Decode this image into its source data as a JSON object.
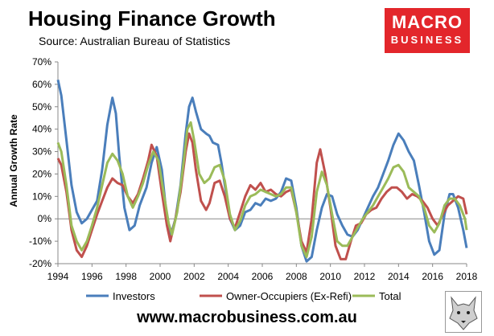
{
  "header": {
    "title": "Housing Finance Growth",
    "subtitle": "Source: Australian Bureau of Statistics"
  },
  "logo": {
    "line1": "MACRO",
    "line2": "BUSINESS",
    "color": "#e3262b"
  },
  "footer": {
    "url": "www.macrobusiness.com.au"
  },
  "chart_data": {
    "type": "line",
    "title": "Housing Finance Growth",
    "xlabel": "",
    "ylabel": "Annual Growth Rate",
    "xlim": [
      1994,
      2018
    ],
    "ylim": [
      -20,
      70
    ],
    "yticks": [
      -20,
      -10,
      0,
      10,
      20,
      30,
      40,
      50,
      60,
      70
    ],
    "ytick_labels": [
      "-20%",
      "-10%",
      "0%",
      "10%",
      "20%",
      "30%",
      "40%",
      "50%",
      "60%",
      "70%"
    ],
    "xticks": [
      1994,
      1996,
      1998,
      2000,
      2002,
      2004,
      2006,
      2008,
      2010,
      2012,
      2014,
      2016,
      2018
    ],
    "xtick_labels": [
      "1994",
      "1996",
      "1998",
      "2000",
      "2002",
      "2004",
      "2006",
      "2008",
      "2010",
      "2012",
      "2014",
      "2016",
      "2018"
    ],
    "grid": false,
    "legend_position": "bottom",
    "series": [
      {
        "name": "Investors",
        "color": "#4a7ebb",
        "points": [
          [
            1994,
            62
          ],
          [
            1994.2,
            55
          ],
          [
            1994.5,
            35
          ],
          [
            1994.8,
            15
          ],
          [
            1995.1,
            3
          ],
          [
            1995.4,
            -2
          ],
          [
            1995.7,
            0
          ],
          [
            1996,
            4
          ],
          [
            1996.3,
            8
          ],
          [
            1996.6,
            22
          ],
          [
            1996.9,
            42
          ],
          [
            1997.2,
            54
          ],
          [
            1997.4,
            47
          ],
          [
            1997.6,
            28
          ],
          [
            1997.9,
            5
          ],
          [
            1998.2,
            -5
          ],
          [
            1998.5,
            -3
          ],
          [
            1998.8,
            6
          ],
          [
            1999.2,
            14
          ],
          [
            1999.5,
            25
          ],
          [
            1999.8,
            32
          ],
          [
            2000.1,
            22
          ],
          [
            2000.4,
            0
          ],
          [
            2000.6,
            -8
          ],
          [
            2000.9,
            0
          ],
          [
            2001.2,
            15
          ],
          [
            2001.5,
            38
          ],
          [
            2001.7,
            50
          ],
          [
            2001.9,
            54
          ],
          [
            2002.1,
            48
          ],
          [
            2002.4,
            40
          ],
          [
            2002.7,
            38
          ],
          [
            2002.9,
            37
          ],
          [
            2003.1,
            34
          ],
          [
            2003.4,
            33
          ],
          [
            2003.6,
            25
          ],
          [
            2003.9,
            10
          ],
          [
            2004.1,
            0
          ],
          [
            2004.4,
            -5
          ],
          [
            2004.7,
            -3
          ],
          [
            2005,
            3
          ],
          [
            2005.3,
            4
          ],
          [
            2005.6,
            7
          ],
          [
            2005.9,
            6
          ],
          [
            2006.2,
            9
          ],
          [
            2006.5,
            8
          ],
          [
            2006.8,
            9
          ],
          [
            2007.1,
            12
          ],
          [
            2007.4,
            18
          ],
          [
            2007.7,
            17
          ],
          [
            2008,
            5
          ],
          [
            2008.3,
            -12
          ],
          [
            2008.6,
            -19
          ],
          [
            2008.9,
            -17
          ],
          [
            2009.2,
            -5
          ],
          [
            2009.5,
            5
          ],
          [
            2009.8,
            11
          ],
          [
            2010.1,
            10
          ],
          [
            2010.4,
            2
          ],
          [
            2010.7,
            -3
          ],
          [
            2011,
            -7
          ],
          [
            2011.3,
            -8
          ],
          [
            2011.6,
            -5
          ],
          [
            2011.9,
            0
          ],
          [
            2012.2,
            5
          ],
          [
            2012.5,
            10
          ],
          [
            2012.8,
            14
          ],
          [
            2013.1,
            20
          ],
          [
            2013.4,
            26
          ],
          [
            2013.7,
            33
          ],
          [
            2014,
            38
          ],
          [
            2014.3,
            35
          ],
          [
            2014.6,
            30
          ],
          [
            2014.9,
            26
          ],
          [
            2015.2,
            15
          ],
          [
            2015.5,
            3
          ],
          [
            2015.8,
            -10
          ],
          [
            2016.1,
            -16
          ],
          [
            2016.4,
            -14
          ],
          [
            2016.7,
            2
          ],
          [
            2017,
            11
          ],
          [
            2017.2,
            11
          ],
          [
            2017.5,
            5
          ],
          [
            2017.8,
            -5
          ],
          [
            2018,
            -13
          ]
        ]
      },
      {
        "name": "Owner-Occupiers (Ex-Refi)",
        "color": "#c0504d",
        "points": [
          [
            1994,
            27
          ],
          [
            1994.2,
            24
          ],
          [
            1994.5,
            12
          ],
          [
            1994.8,
            -5
          ],
          [
            1995.1,
            -14
          ],
          [
            1995.4,
            -17
          ],
          [
            1995.7,
            -12
          ],
          [
            1996,
            -5
          ],
          [
            1996.3,
            2
          ],
          [
            1996.6,
            8
          ],
          [
            1996.9,
            14
          ],
          [
            1997.2,
            18
          ],
          [
            1997.5,
            16
          ],
          [
            1997.8,
            15
          ],
          [
            1998.1,
            10
          ],
          [
            1998.4,
            7
          ],
          [
            1998.7,
            11
          ],
          [
            1999,
            18
          ],
          [
            1999.3,
            26
          ],
          [
            1999.5,
            33
          ],
          [
            1999.8,
            28
          ],
          [
            2000.1,
            12
          ],
          [
            2000.4,
            -3
          ],
          [
            2000.6,
            -10
          ],
          [
            2000.9,
            0
          ],
          [
            2001.2,
            12
          ],
          [
            2001.5,
            30
          ],
          [
            2001.7,
            38
          ],
          [
            2001.9,
            34
          ],
          [
            2002.1,
            22
          ],
          [
            2002.4,
            8
          ],
          [
            2002.7,
            4
          ],
          [
            2002.9,
            7
          ],
          [
            2003.2,
            16
          ],
          [
            2003.5,
            17
          ],
          [
            2003.8,
            10
          ],
          [
            2004.1,
            0
          ],
          [
            2004.4,
            -4
          ],
          [
            2004.7,
            3
          ],
          [
            2005,
            10
          ],
          [
            2005.3,
            15
          ],
          [
            2005.6,
            13
          ],
          [
            2005.9,
            16
          ],
          [
            2006.2,
            12
          ],
          [
            2006.5,
            13
          ],
          [
            2006.8,
            11
          ],
          [
            2007.1,
            10
          ],
          [
            2007.4,
            12
          ],
          [
            2007.7,
            13
          ],
          [
            2008,
            3
          ],
          [
            2008.3,
            -10
          ],
          [
            2008.6,
            -15
          ],
          [
            2008.9,
            0
          ],
          [
            2009.2,
            25
          ],
          [
            2009.4,
            31
          ],
          [
            2009.7,
            20
          ],
          [
            2010,
            5
          ],
          [
            2010.3,
            -12
          ],
          [
            2010.6,
            -18
          ],
          [
            2010.9,
            -18
          ],
          [
            2011.2,
            -10
          ],
          [
            2011.5,
            -3
          ],
          [
            2011.8,
            -2
          ],
          [
            2012.1,
            2
          ],
          [
            2012.4,
            4
          ],
          [
            2012.7,
            5
          ],
          [
            2013,
            9
          ],
          [
            2013.3,
            12
          ],
          [
            2013.6,
            14
          ],
          [
            2013.9,
            14
          ],
          [
            2014.2,
            12
          ],
          [
            2014.5,
            9
          ],
          [
            2014.8,
            11
          ],
          [
            2015.1,
            10
          ],
          [
            2015.4,
            8
          ],
          [
            2015.7,
            5
          ],
          [
            2016,
            0
          ],
          [
            2016.3,
            -3
          ],
          [
            2016.6,
            2
          ],
          [
            2016.9,
            6
          ],
          [
            2017.2,
            8
          ],
          [
            2017.5,
            10
          ],
          [
            2017.8,
            9
          ],
          [
            2018,
            2
          ]
        ]
      },
      {
        "name": "Total",
        "color": "#9bbb59",
        "points": [
          [
            1994,
            34
          ],
          [
            1994.2,
            30
          ],
          [
            1994.5,
            15
          ],
          [
            1994.8,
            -3
          ],
          [
            1995.1,
            -10
          ],
          [
            1995.4,
            -14
          ],
          [
            1995.7,
            -10
          ],
          [
            1996,
            -3
          ],
          [
            1996.3,
            5
          ],
          [
            1996.6,
            15
          ],
          [
            1996.9,
            25
          ],
          [
            1997.2,
            29
          ],
          [
            1997.5,
            26
          ],
          [
            1997.8,
            20
          ],
          [
            1998.1,
            10
          ],
          [
            1998.4,
            5
          ],
          [
            1998.7,
            10
          ],
          [
            1999,
            16
          ],
          [
            1999.3,
            24
          ],
          [
            1999.6,
            30
          ],
          [
            1999.9,
            26
          ],
          [
            2000.2,
            12
          ],
          [
            2000.5,
            -2
          ],
          [
            2000.7,
            -7
          ],
          [
            2001,
            3
          ],
          [
            2001.3,
            20
          ],
          [
            2001.6,
            40
          ],
          [
            2001.8,
            43
          ],
          [
            2002,
            35
          ],
          [
            2002.3,
            20
          ],
          [
            2002.6,
            16
          ],
          [
            2002.9,
            18
          ],
          [
            2003.2,
            23
          ],
          [
            2003.5,
            24
          ],
          [
            2003.8,
            17
          ],
          [
            2004.1,
            2
          ],
          [
            2004.4,
            -5
          ],
          [
            2004.7,
            -1
          ],
          [
            2005,
            6
          ],
          [
            2005.3,
            10
          ],
          [
            2005.6,
            11
          ],
          [
            2005.9,
            13
          ],
          [
            2006.2,
            12
          ],
          [
            2006.5,
            11
          ],
          [
            2006.8,
            10
          ],
          [
            2007.1,
            11
          ],
          [
            2007.4,
            14
          ],
          [
            2007.7,
            14
          ],
          [
            2008,
            3
          ],
          [
            2008.3,
            -12
          ],
          [
            2008.6,
            -17
          ],
          [
            2008.9,
            -8
          ],
          [
            2009.2,
            12
          ],
          [
            2009.5,
            21
          ],
          [
            2009.8,
            15
          ],
          [
            2010.1,
            2
          ],
          [
            2010.4,
            -10
          ],
          [
            2010.7,
            -12
          ],
          [
            2011,
            -12
          ],
          [
            2011.3,
            -8
          ],
          [
            2011.6,
            -4
          ],
          [
            2011.9,
            0
          ],
          [
            2012.2,
            3
          ],
          [
            2012.5,
            6
          ],
          [
            2012.8,
            10
          ],
          [
            2013.1,
            14
          ],
          [
            2013.4,
            18
          ],
          [
            2013.7,
            23
          ],
          [
            2014,
            24
          ],
          [
            2014.3,
            21
          ],
          [
            2014.6,
            14
          ],
          [
            2014.9,
            12
          ],
          [
            2015.2,
            10
          ],
          [
            2015.5,
            5
          ],
          [
            2015.8,
            -3
          ],
          [
            2016.1,
            -6
          ],
          [
            2016.4,
            -2
          ],
          [
            2016.7,
            6
          ],
          [
            2017,
            9
          ],
          [
            2017.3,
            9
          ],
          [
            2017.6,
            6
          ],
          [
            2017.9,
            0
          ],
          [
            2018,
            -5
          ]
        ]
      }
    ]
  }
}
